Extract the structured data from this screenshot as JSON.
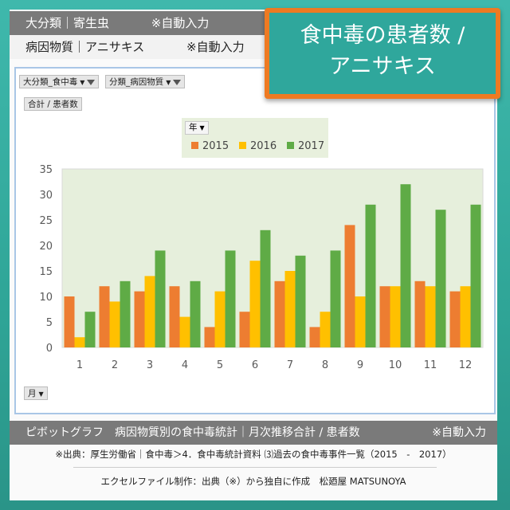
{
  "header": {
    "row1_label": "大分類｜寄生虫",
    "row1_note": "※自動入力",
    "row2_label": "病因物質｜アニサキス",
    "row2_note": "※自動入力"
  },
  "title_box": {
    "line1": "食中毒の患者数 /",
    "line2": "アニサキス"
  },
  "pivot": {
    "filter1": "大分類_食中毒",
    "filter2": "分類_病因物質",
    "value_field": "合計 / 患者数",
    "legend_field": "年",
    "axis_field": "月"
  },
  "footer": {
    "caption": "ピボットグラフ　病因物質別の食中毒統計｜月次推移合計 / 患者数",
    "caption_note": "※自動入力",
    "source": "※出典：厚生労働省｜食中毒＞4．食中毒統計資料 ⑶過去の食中毒事件一覧（2015　-　2017）",
    "made_by": "エクセルファイル制作：出典（※）から独自に作成　松廼屋 MATSUNOYA"
  },
  "colors": {
    "s2015": "#ed7d31",
    "s2016": "#ffc000",
    "s2017": "#5fab46",
    "plot_bg": "#e6efdc"
  },
  "chart_data": {
    "type": "bar",
    "categories": [
      "1",
      "2",
      "3",
      "4",
      "5",
      "6",
      "7",
      "8",
      "9",
      "10",
      "11",
      "12"
    ],
    "series": [
      {
        "name": "2015",
        "values": [
          10,
          12,
          11,
          12,
          4,
          7,
          13,
          4,
          24,
          12,
          13,
          11
        ]
      },
      {
        "name": "2016",
        "values": [
          2,
          9,
          14,
          6,
          11,
          17,
          15,
          7,
          10,
          12,
          12,
          12
        ]
      },
      {
        "name": "2017",
        "values": [
          7,
          13,
          19,
          13,
          19,
          23,
          18,
          19,
          28,
          32,
          27,
          28
        ]
      }
    ],
    "ylim": [
      0,
      35
    ],
    "yticks": [
      0,
      5,
      10,
      15,
      20,
      25,
      30,
      35
    ],
    "legend_position": "top",
    "grid": false
  }
}
